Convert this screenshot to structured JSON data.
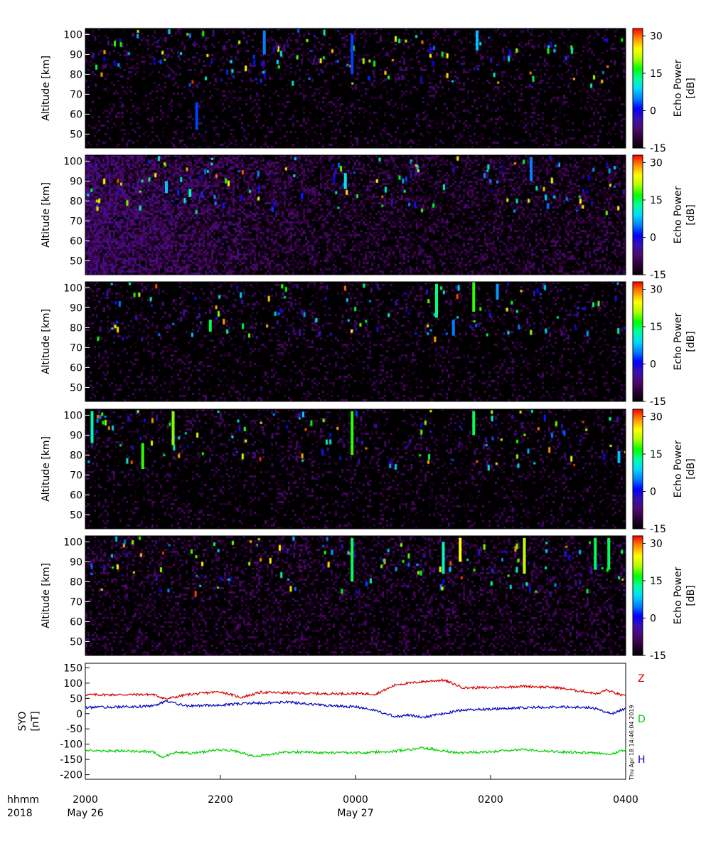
{
  "chart_data": [
    {
      "type": "heatmap",
      "ylabel": "Altitude [km]",
      "colorbar_label_line1": "Echo Power",
      "colorbar_label_line2": "[dB]",
      "y_ticks": [
        "100",
        "90",
        "80",
        "70",
        "60",
        "50"
      ],
      "ylim": [
        43,
        103
      ],
      "zlim": [
        -15,
        33
      ],
      "colorbar_ticks": [
        "30",
        "15",
        "0",
        "-15"
      ],
      "colorbar_tick_values": [
        30,
        15,
        0,
        -15
      ],
      "colormap": [
        "#000000",
        "#2a0033",
        "#4b0a6e",
        "#3a10b0",
        "#0000ff",
        "#0080ff",
        "#00d8ff",
        "#00ffa0",
        "#00ff00",
        "#b0ff00",
        "#ffff00",
        "#ff9000",
        "#ff0000"
      ],
      "time_range_hours": [
        20,
        28
      ],
      "features": [
        {
          "t": 21.65,
          "alt": [
            52,
            66
          ],
          "db": 3
        },
        {
          "t": 22.65,
          "alt": [
            90,
            102
          ],
          "db": 5
        },
        {
          "t": 23.95,
          "alt": [
            80,
            100
          ],
          "db": 3
        },
        {
          "t": 24.2,
          "alt": [
            77,
            79
          ],
          "db": 2
        },
        {
          "t": 25.8,
          "alt": [
            92,
            102
          ],
          "db": 8
        }
      ]
    },
    {
      "type": "heatmap",
      "ylabel": "Altitude [km]",
      "colorbar_label_line1": "Echo Power",
      "colorbar_label_line2": "[dB]",
      "y_ticks": [
        "100",
        "90",
        "80",
        "70",
        "60",
        "50"
      ],
      "ylim": [
        43,
        103
      ],
      "zlim": [
        -15,
        33
      ],
      "colorbar_ticks": [
        "30",
        "15",
        "0",
        "-15"
      ],
      "colorbar_tick_values": [
        30,
        15,
        0,
        -15
      ],
      "time_range_hours": [
        20,
        28
      ],
      "features": [
        {
          "t": 21.2,
          "alt": [
            84,
            90
          ],
          "db": 8
        },
        {
          "t": 21.55,
          "alt": [
            82,
            86
          ],
          "db": 12
        },
        {
          "t": 23.85,
          "alt": [
            86,
            94
          ],
          "db": 10
        },
        {
          "t": 26.6,
          "alt": [
            90,
            102
          ],
          "db": 5
        },
        {
          "t": 26.85,
          "alt": [
            76,
            79
          ],
          "db": 4
        }
      ]
    },
    {
      "type": "heatmap",
      "ylabel": "Altitude [km]",
      "colorbar_label_line1": "Echo Power",
      "colorbar_label_line2": "[dB]",
      "y_ticks": [
        "100",
        "90",
        "80",
        "70",
        "60",
        "50"
      ],
      "ylim": [
        43,
        103
      ],
      "zlim": [
        -15,
        33
      ],
      "colorbar_ticks": [
        "30",
        "15",
        "0",
        "-15"
      ],
      "colorbar_tick_values": [
        30,
        15,
        0,
        -15
      ],
      "time_range_hours": [
        20,
        28
      ],
      "features": [
        {
          "t": 21.85,
          "alt": [
            78,
            84
          ],
          "db": 15
        },
        {
          "t": 25.2,
          "alt": [
            85,
            102
          ],
          "db": 14
        },
        {
          "t": 25.45,
          "alt": [
            76,
            84
          ],
          "db": 5
        },
        {
          "t": 25.75,
          "alt": [
            88,
            103
          ],
          "db": 18
        },
        {
          "t": 26.1,
          "alt": [
            94,
            102
          ],
          "db": 6
        }
      ]
    },
    {
      "type": "heatmap",
      "ylabel": "Altitude [km]",
      "colorbar_label_line1": "Echo Power",
      "colorbar_label_line2": "[dB]",
      "y_ticks": [
        "100",
        "90",
        "80",
        "70",
        "60",
        "50"
      ],
      "ylim": [
        43,
        103
      ],
      "zlim": [
        -15,
        33
      ],
      "colorbar_ticks": [
        "30",
        "15",
        "0",
        "-15"
      ],
      "colorbar_tick_values": [
        30,
        15,
        0,
        -15
      ],
      "time_range_hours": [
        20,
        28
      ],
      "features": [
        {
          "t": 20.1,
          "alt": [
            86,
            102
          ],
          "db": 12
        },
        {
          "t": 20.85,
          "alt": [
            73,
            86
          ],
          "db": 18
        },
        {
          "t": 21.3,
          "alt": [
            85,
            102
          ],
          "db": 20
        },
        {
          "t": 23.95,
          "alt": [
            80,
            102
          ],
          "db": 18
        },
        {
          "t": 25.75,
          "alt": [
            90,
            102
          ],
          "db": 15
        },
        {
          "t": 27.9,
          "alt": [
            76,
            82
          ],
          "db": 8
        }
      ]
    },
    {
      "type": "heatmap",
      "ylabel": "Altitude [km]",
      "colorbar_label_line1": "Echo Power",
      "colorbar_label_line2": "[dB]",
      "y_ticks": [
        "100",
        "90",
        "80",
        "70",
        "60",
        "50"
      ],
      "ylim": [
        43,
        103
      ],
      "zlim": [
        -15,
        33
      ],
      "colorbar_ticks": [
        "30",
        "15",
        "0",
        "-15"
      ],
      "colorbar_tick_values": [
        30,
        15,
        0,
        -15
      ],
      "time_range_hours": [
        20,
        28
      ],
      "features": [
        {
          "t": 23.95,
          "alt": [
            80,
            102
          ],
          "db": 15
        },
        {
          "t": 25.3,
          "alt": [
            84,
            100
          ],
          "db": 12
        },
        {
          "t": 25.55,
          "alt": [
            90,
            102
          ],
          "db": 25
        },
        {
          "t": 26.5,
          "alt": [
            84,
            102
          ],
          "db": 22
        },
        {
          "t": 27.55,
          "alt": [
            86,
            102
          ],
          "db": 15
        },
        {
          "t": 27.75,
          "alt": [
            86,
            102
          ],
          "db": 15
        }
      ]
    },
    {
      "type": "line",
      "ylabel_line1": "SYO",
      "ylabel_line2": "[nT]",
      "y_ticks": [
        "150",
        "100",
        "50",
        "0",
        "-50",
        "-100",
        "-150",
        "-200"
      ],
      "ylim": [
        -215,
        165
      ],
      "xlim": [
        20,
        28
      ],
      "series": [
        {
          "name": "Z",
          "color": "#d60000",
          "x": [
            20.0,
            20.5,
            21.0,
            21.2,
            21.5,
            22.0,
            22.3,
            22.6,
            23.0,
            23.5,
            24.0,
            24.3,
            24.6,
            25.0,
            25.3,
            25.6,
            26.0,
            26.5,
            27.0,
            27.5,
            27.6,
            27.7,
            28.0
          ],
          "values": [
            62,
            62,
            63,
            48,
            62,
            72,
            53,
            70,
            68,
            65,
            66,
            64,
            95,
            105,
            110,
            85,
            85,
            90,
            85,
            68,
            65,
            78,
            56
          ]
        },
        {
          "name": "D",
          "color": "#00d000",
          "x": [
            20.0,
            20.5,
            21.0,
            21.15,
            21.35,
            21.6,
            22.0,
            22.2,
            22.5,
            23.0,
            23.5,
            24.0,
            24.5,
            25.0,
            25.5,
            26.0,
            26.5,
            27.0,
            27.5,
            27.8,
            28.0
          ],
          "values": [
            -122,
            -122,
            -125,
            -143,
            -125,
            -130,
            -118,
            -122,
            -140,
            -125,
            -128,
            -128,
            -125,
            -112,
            -128,
            -125,
            -118,
            -125,
            -128,
            -132,
            -118
          ]
        },
        {
          "name": "H",
          "color": "#0000c0",
          "x": [
            20.0,
            20.5,
            21.0,
            21.2,
            21.5,
            22.0,
            22.5,
            23.0,
            23.5,
            24.0,
            24.3,
            24.6,
            24.8,
            25.0,
            25.3,
            25.6,
            26.0,
            26.5,
            27.0,
            27.5,
            27.8,
            28.0
          ],
          "values": [
            20,
            22,
            25,
            40,
            25,
            28,
            35,
            38,
            28,
            22,
            10,
            -10,
            -5,
            -12,
            0,
            12,
            15,
            20,
            22,
            20,
            0,
            18
          ]
        }
      ]
    }
  ],
  "x_axis": {
    "row_label_time": "hhmm",
    "row_label_year": "2018",
    "ticks": [
      {
        "time": "2000",
        "date": "May 26",
        "hour": 20
      },
      {
        "time": "2200",
        "date": "",
        "hour": 22
      },
      {
        "time": "0000",
        "date": "May 27",
        "hour": 24
      },
      {
        "time": "0200",
        "date": "",
        "hour": 26
      },
      {
        "time": "0400",
        "date": "",
        "hour": 28
      }
    ]
  },
  "timestamp": "Thu Apr 18 14:46:04 2019"
}
